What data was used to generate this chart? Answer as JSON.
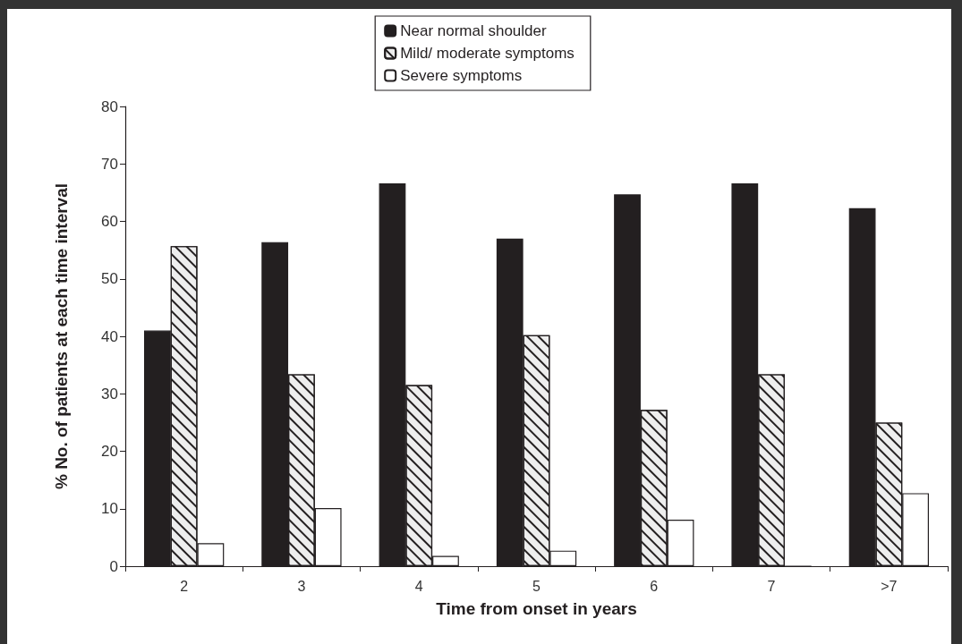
{
  "chart_data": {
    "type": "bar",
    "xlabel": "Time from onset in years",
    "ylabel": "% No. of patients at each time interval",
    "categories": [
      "2",
      "3",
      "4",
      "5",
      "6",
      "7",
      ">7"
    ],
    "series": [
      {
        "name": "Near normal shoulder",
        "color": "#231f20",
        "values": [
          41,
          56.4,
          66.6,
          57,
          64.7,
          66.6,
          62.3
        ]
      },
      {
        "name": "Mild/ moderate symptoms",
        "color": "#eeeeee",
        "values": [
          55.7,
          33.4,
          31.5,
          40.2,
          27.2,
          33.4,
          25
        ]
      },
      {
        "name": "Severe symptoms",
        "color": "#ffffff",
        "values": [
          4,
          10.1,
          1.8,
          2.7,
          8.1,
          0,
          12.7
        ]
      }
    ],
    "ylim": [
      0,
      80
    ],
    "yticks": [
      0,
      10,
      20,
      30,
      40,
      50,
      60,
      70,
      80
    ],
    "grid": false,
    "legend": "top"
  }
}
